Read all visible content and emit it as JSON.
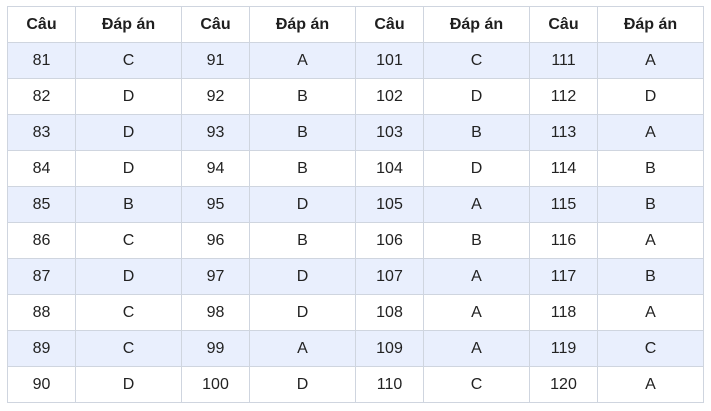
{
  "table": {
    "headers": [
      "Câu",
      "Đáp án",
      "Câu",
      "Đáp án",
      "Câu",
      "Đáp án",
      "Câu",
      "Đáp án"
    ],
    "rows": [
      [
        "81",
        "C",
        "91",
        "A",
        "101",
        "C",
        "111",
        "A"
      ],
      [
        "82",
        "D",
        "92",
        "B",
        "102",
        "D",
        "112",
        "D"
      ],
      [
        "83",
        "D",
        "93",
        "B",
        "103",
        "B",
        "113",
        "A"
      ],
      [
        "84",
        "D",
        "94",
        "B",
        "104",
        "D",
        "114",
        "B"
      ],
      [
        "85",
        "B",
        "95",
        "D",
        "105",
        "A",
        "115",
        "B"
      ],
      [
        "86",
        "C",
        "96",
        "B",
        "106",
        "B",
        "116",
        "A"
      ],
      [
        "87",
        "D",
        "97",
        "D",
        "107",
        "A",
        "117",
        "B"
      ],
      [
        "88",
        "C",
        "98",
        "D",
        "108",
        "A",
        "118",
        "A"
      ],
      [
        "89",
        "C",
        "99",
        "A",
        "109",
        "A",
        "119",
        "C"
      ],
      [
        "90",
        "D",
        "100",
        "D",
        "110",
        "C",
        "120",
        "A"
      ]
    ]
  },
  "colors": {
    "stripe": "#e9effd",
    "border": "#cfd5df",
    "text": "#222222"
  }
}
